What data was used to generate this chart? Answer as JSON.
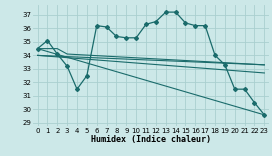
{
  "xlabel": "Humidex (Indice chaleur)",
  "background_color": "#cce8e8",
  "grid_color": "#aacfcf",
  "line_color": "#1a6b6b",
  "xlim": [
    -0.5,
    23.5
  ],
  "ylim": [
    28.75,
    37.75
  ],
  "yticks": [
    29,
    30,
    31,
    32,
    33,
    34,
    35,
    36,
    37
  ],
  "xticks": [
    0,
    1,
    2,
    3,
    4,
    5,
    6,
    7,
    8,
    9,
    10,
    11,
    12,
    13,
    14,
    15,
    16,
    17,
    18,
    19,
    20,
    21,
    22,
    23
  ],
  "line1_x": [
    0,
    1,
    2,
    3,
    4,
    5,
    6,
    7,
    8,
    9,
    10,
    11,
    12,
    13,
    14,
    15,
    16,
    17,
    18,
    19,
    20,
    21,
    22,
    23
  ],
  "line1_y": [
    34.5,
    35.1,
    34.1,
    33.2,
    31.5,
    32.5,
    36.2,
    36.1,
    35.4,
    35.3,
    35.3,
    36.3,
    36.5,
    37.2,
    37.2,
    36.4,
    36.2,
    36.2,
    34.0,
    33.3,
    31.5,
    31.5,
    30.5,
    29.6
  ],
  "line2_x": [
    0,
    2,
    3,
    23
  ],
  "line2_y": [
    34.5,
    34.5,
    34.1,
    33.3
  ],
  "line3_x": [
    0,
    23
  ],
  "line3_y": [
    34.0,
    33.3
  ],
  "line4_x": [
    0,
    23
  ],
  "line4_y": [
    34.0,
    32.7
  ],
  "line5_x": [
    0,
    23
  ],
  "line5_y": [
    34.5,
    29.6
  ]
}
